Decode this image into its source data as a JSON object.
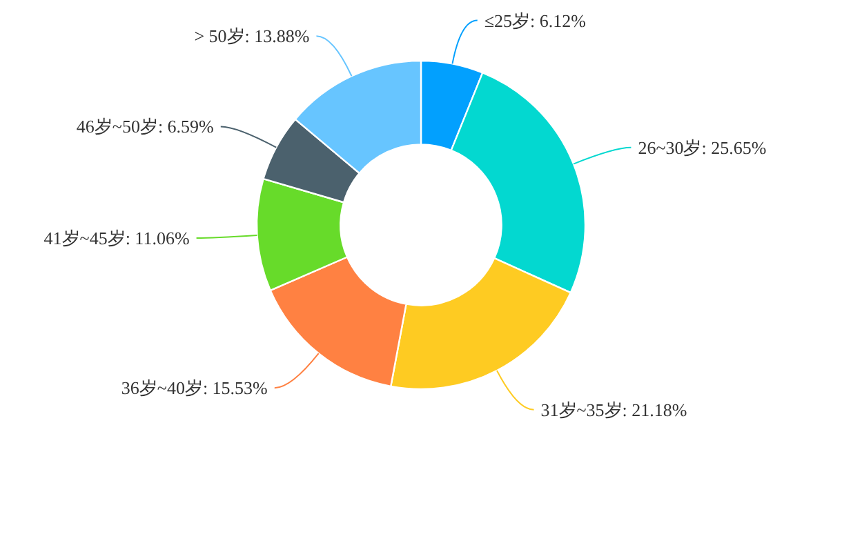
{
  "chart_data": {
    "type": "donut",
    "categories": [
      "≤25岁",
      "26~30岁",
      "31岁~35岁",
      "36岁~40岁",
      "41岁~45岁",
      "46岁~50岁",
      "> 50岁"
    ],
    "values": [
      6.12,
      25.65,
      21.18,
      15.53,
      11.06,
      6.59,
      13.88
    ],
    "value_labels": [
      "6.12%",
      "25.65%",
      "21.18%",
      "15.53%",
      "11.06%",
      "6.59%",
      "13.88%"
    ],
    "colors": [
      "#02a0fe",
      "#03d8d0",
      "#fecb22",
      "#ff8142",
      "#67db2a",
      "#4b616d",
      "#67c5ff"
    ]
  }
}
